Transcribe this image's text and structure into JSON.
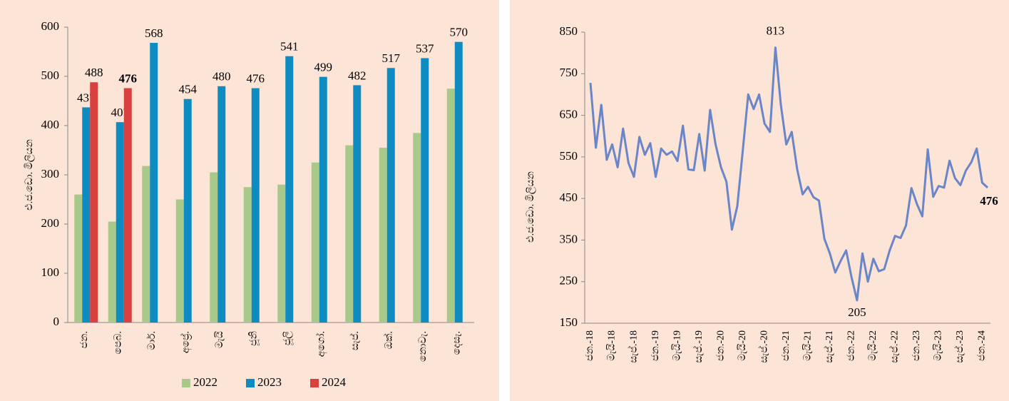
{
  "chart_data": [
    {
      "type": "bar",
      "y_label": "එ.ජ.ඩො. මිලියන",
      "categories": [
        "ජන.",
        "පෙබ.",
        "මාර්.",
        "අප්‍රේ.",
        "මැයි",
        "ජූනි",
        "ජූලි",
        "අගෝ.",
        "සැප්.",
        "ඔක්.",
        "නොවැ.",
        "දෙසැ."
      ],
      "series": [
        {
          "name": "2022",
          "color": "#a9c98a",
          "values": [
            260,
            205,
            318,
            250,
            305,
            275,
            280,
            325,
            360,
            355,
            385,
            475
          ]
        },
        {
          "name": "2023",
          "color": "#0e8bc0",
          "label_color": "#2b9fd0",
          "labels": true,
          "values": [
            437,
            407,
            568,
            454,
            480,
            476,
            541,
            499,
            482,
            517,
            537,
            570
          ]
        },
        {
          "name": "2024",
          "color": "#d9413f",
          "label_color": "#c0161a",
          "labels": true,
          "values": [
            488,
            476,
            null,
            null,
            null,
            null,
            null,
            null,
            null,
            null,
            null,
            null
          ]
        }
      ],
      "ylim": [
        0,
        600
      ],
      "yticks": [
        0,
        100,
        200,
        300,
        400,
        500,
        600
      ],
      "legend": "bottom"
    },
    {
      "type": "line",
      "y_label": "එ.ජ.ඩො. මිලියන",
      "categories": [
        "ජන.-18",
        null,
        null,
        null,
        "මැයි-18",
        null,
        null,
        null,
        "සැප්.-18",
        null,
        null,
        null,
        "ජන.-19",
        null,
        null,
        null,
        "මැයි-19",
        null,
        null,
        null,
        "සැප්.-19",
        null,
        null,
        null,
        "ජන.-20",
        null,
        null,
        null,
        "මැයි-20",
        null,
        null,
        null,
        "සැප්.-20",
        null,
        null,
        null,
        "ජන.-21",
        null,
        null,
        null,
        "මැයි-21",
        null,
        null,
        null,
        "සැප්.-21",
        null,
        null,
        null,
        "ජන.-22",
        null,
        null,
        null,
        "මැයි-22",
        null,
        null,
        null,
        "සැප්.-22",
        null,
        null,
        null,
        "ජන.-23",
        null,
        null,
        null,
        "මැයි-23",
        null,
        null,
        null,
        "සැප්.-23",
        null,
        null,
        null,
        "ජන.-24",
        null
      ],
      "series": [
        {
          "color": "#6a85c8",
          "values": [
            728,
            572,
            675,
            543,
            580,
            525,
            618,
            535,
            502,
            598,
            555,
            583,
            502,
            570,
            555,
            563,
            540,
            625,
            520,
            518,
            605,
            517,
            663,
            580,
            525,
            490,
            375,
            432,
            565,
            700,
            665,
            700,
            630,
            610,
            813,
            675,
            580,
            610,
            520,
            460,
            478,
            453,
            445,
            353,
            318,
            272,
            300,
            325,
            260,
            205,
            318,
            250,
            305,
            275,
            280,
            325,
            360,
            355,
            385,
            475,
            437,
            407,
            568,
            454,
            480,
            476,
            541,
            499,
            482,
            517,
            537,
            570,
            488,
            476
          ],
          "value_labels": [
            null,
            null,
            null,
            null,
            null,
            null,
            null,
            null,
            null,
            null,
            null,
            null,
            null,
            null,
            null,
            null,
            null,
            null,
            null,
            null,
            null,
            null,
            null,
            null,
            null,
            null,
            null,
            null,
            null,
            null,
            null,
            null,
            null,
            null,
            "813",
            null,
            null,
            null,
            null,
            null,
            null,
            null,
            null,
            null,
            null,
            null,
            null,
            null,
            null,
            "205",
            null,
            null,
            null,
            null,
            null,
            null,
            null,
            null,
            null,
            null,
            null,
            null,
            null,
            null,
            null,
            null,
            null,
            null,
            null,
            null,
            null,
            null,
            null,
            "476"
          ]
        }
      ],
      "ylim": [
        150,
        850
      ],
      "yticks": [
        150,
        250,
        350,
        450,
        550,
        650,
        750,
        850
      ]
    }
  ]
}
